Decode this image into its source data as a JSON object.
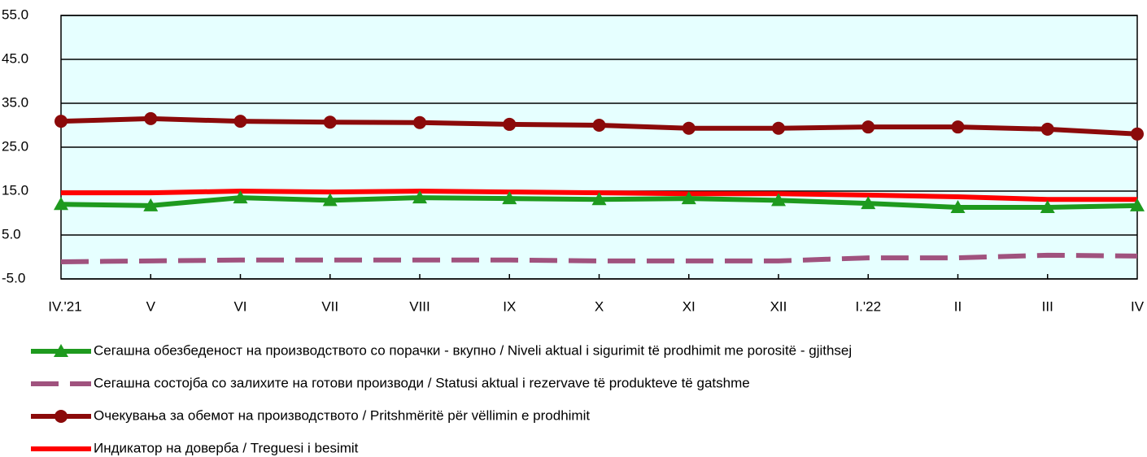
{
  "chart_data": {
    "type": "line",
    "categories": [
      "IV.'21",
      "V",
      "VI",
      "VII",
      "VIII",
      "IX",
      "X",
      "XI",
      "XII",
      "I.'22",
      "II",
      "III",
      "IV"
    ],
    "ylim": [
      -5,
      55
    ],
    "yticks": [
      {
        "value": -5,
        "label": "-5.0"
      },
      {
        "value": 5,
        "label": "5.0"
      },
      {
        "value": 15,
        "label": "15.0"
      },
      {
        "value": 25,
        "label": "25.0"
      },
      {
        "value": 35,
        "label": "35.0"
      },
      {
        "value": 45,
        "label": "45.0"
      },
      {
        "value": 55,
        "label": "55.0"
      }
    ],
    "grid": true,
    "background": "#e6ffff",
    "series": [
      {
        "name": "Сегашна обезбеденост на производството со порачки - вкупно / Niveli aktual i sigurimit të prodhimit me porositë - gjithsej",
        "color": "#1e9a1e",
        "marker": "triangle",
        "dashed": false,
        "values": [
          12.0,
          11.7,
          13.5,
          12.9,
          13.5,
          13.3,
          13.1,
          13.3,
          12.9,
          12.2,
          11.3,
          11.3,
          11.7
        ]
      },
      {
        "name": "Сегашна состојба со залихите на готови производи / Statusi aktual i rezervave të produkteve të gatshme",
        "color": "#a0527e",
        "marker": "none",
        "dashed": true,
        "values": [
          -1.1,
          -0.9,
          -0.7,
          -0.7,
          -0.7,
          -0.7,
          -0.9,
          -0.9,
          -0.9,
          -0.2,
          -0.2,
          0.4,
          0.2
        ]
      },
      {
        "name": "Очекувања за обемот на производството / Pritshmëritë për vëllimin e prodhimit",
        "color": "#8b0a0a",
        "marker": "circle",
        "dashed": false,
        "values": [
          30.9,
          31.5,
          30.9,
          30.7,
          30.6,
          30.2,
          30.0,
          29.3,
          29.3,
          29.6,
          29.6,
          29.1,
          28.0
        ]
      },
      {
        "name": "Индикатор на доверба / Treguesi i besimit",
        "color": "#ff0000",
        "marker": "none",
        "dashed": false,
        "values": [
          14.6,
          14.6,
          15.0,
          14.8,
          15.0,
          14.8,
          14.6,
          14.4,
          14.4,
          14.1,
          13.7,
          13.1,
          13.1
        ]
      }
    ]
  }
}
